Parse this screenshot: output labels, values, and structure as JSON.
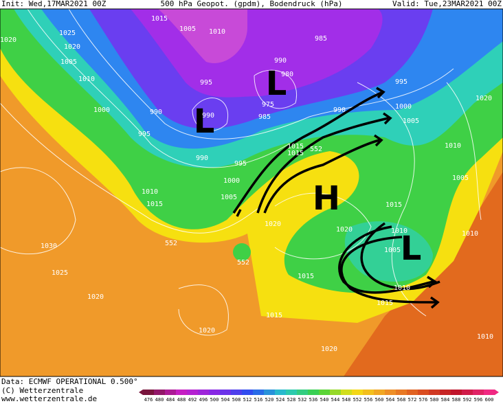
{
  "header": {
    "init": "Init: Wed,17MAR2021 00Z",
    "title": "500 hPa Geopot. (gpdm), Bodendruck (hPa)",
    "valid": "Valid: Tue,23MAR2021 00Z"
  },
  "footer": {
    "data": "Data: ECMWF OPERATIONAL 0.500°",
    "copyright": "(C) Wetterzentrale",
    "url": "www.wetterzentrale.de"
  },
  "colorbar": {
    "labels": [
      476,
      480,
      484,
      488,
      492,
      496,
      500,
      504,
      508,
      512,
      516,
      520,
      524,
      528,
      532,
      536,
      540,
      544,
      548,
      552,
      556,
      560,
      564,
      568,
      572,
      576,
      580,
      584,
      588,
      592,
      596,
      600
    ]
  },
  "pressure_centers": [
    "L",
    "L",
    "H",
    "L"
  ],
  "isobar_labels": [
    "1015",
    "1005",
    "1010",
    "1025",
    "1020",
    "1020",
    "1005",
    "1010",
    "1000",
    "990",
    "995",
    "990",
    "995",
    "990",
    "975",
    "985",
    "980",
    "990",
    "985",
    "990",
    "995",
    "1000",
    "1005",
    "1020",
    "1010",
    "1015",
    "1015",
    "552",
    "995",
    "1000",
    "1005",
    "1010",
    "1015",
    "1020",
    "1020",
    "1015",
    "1005",
    "1010",
    "1010",
    "1005",
    "1010",
    "1015",
    "552",
    "552",
    "1030",
    "1025",
    "1020",
    "1015",
    "1015",
    "1020",
    "1020",
    "1010"
  ]
}
